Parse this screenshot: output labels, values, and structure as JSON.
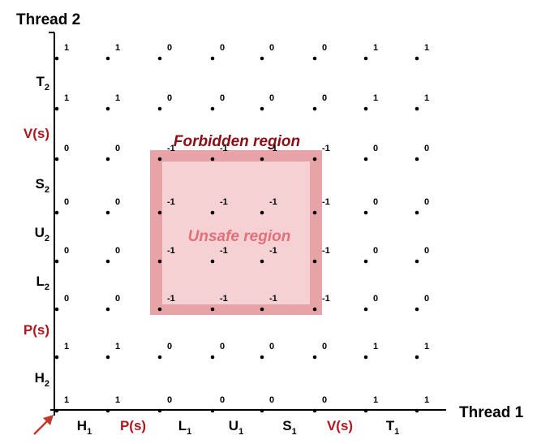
{
  "diagram": {
    "y_axis_title": "Thread 2",
    "x_axis_title": "Thread 1",
    "x_ticks": [
      {
        "base": "H",
        "sub": "1",
        "red": false
      },
      {
        "base": "P(s)",
        "sub": "",
        "red": true
      },
      {
        "base": "L",
        "sub": "1",
        "red": false
      },
      {
        "base": "U",
        "sub": "1",
        "red": false
      },
      {
        "base": "S",
        "sub": "1",
        "red": false
      },
      {
        "base": "V(s)",
        "sub": "",
        "red": true
      },
      {
        "base": "T",
        "sub": "1",
        "red": false
      }
    ],
    "y_ticks": [
      {
        "base": "H",
        "sub": "2",
        "red": false
      },
      {
        "base": "P(s)",
        "sub": "",
        "red": true
      },
      {
        "base": "L",
        "sub": "2",
        "red": false
      },
      {
        "base": "U",
        "sub": "2",
        "red": false
      },
      {
        "base": "S",
        "sub": "2",
        "red": false
      },
      {
        "base": "V(s)",
        "sub": "",
        "red": true
      },
      {
        "base": "T",
        "sub": "2",
        "red": false
      }
    ],
    "grid_values": [
      [
        "1",
        "1",
        "0",
        "0",
        "0",
        "0",
        "1",
        "1"
      ],
      [
        "1",
        "1",
        "0",
        "0",
        "0",
        "0",
        "1",
        "1"
      ],
      [
        "0",
        "0",
        "-1",
        "-1",
        "-1",
        "-1",
        "0",
        "0"
      ],
      [
        "0",
        "0",
        "-1",
        "-1",
        "-1",
        "-1",
        "0",
        "0"
      ],
      [
        "0",
        "0",
        "-1",
        "-1",
        "-1",
        "-1",
        "0",
        "0"
      ],
      [
        "0",
        "0",
        "-1",
        "-1",
        "-1",
        "-1",
        "0",
        "0"
      ],
      [
        "1",
        "1",
        "0",
        "0",
        "0",
        "0",
        "1",
        "1"
      ],
      [
        "1",
        "1",
        "0",
        "0",
        "0",
        "0",
        "1",
        "1"
      ]
    ],
    "forbidden_label": "Forbidden region",
    "unsafe_label": "Unsafe region",
    "colors": {
      "label_red": "#b0171f",
      "forbidden_dark_red": "#8b0e16",
      "forbidden_fill": "#e8a3a8",
      "unsafe_fill": "#f6d1d3",
      "unsafe_text": "#e0707a",
      "arrow": "#c0392b"
    }
  }
}
